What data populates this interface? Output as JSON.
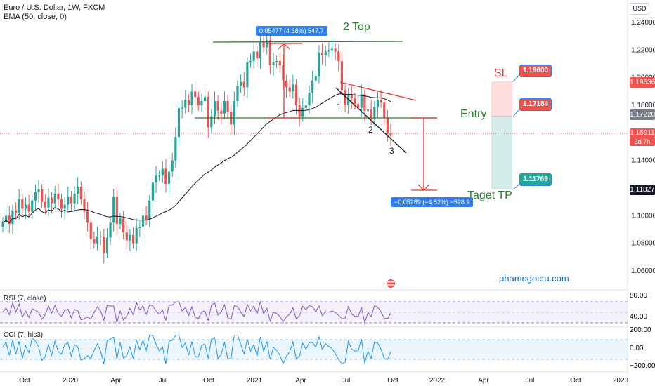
{
  "header": {
    "symbol": "Euro / U.S. Dollar, 1W, FXCM",
    "indicator": "EMA (50, close, 0)"
  },
  "currency_button": "USD",
  "price_tags": {
    "sl_level": "1.19636",
    "entry_level": "1.17220",
    "current": "1.15911",
    "countdown": "3d 7h",
    "tp_level": "1.11827"
  },
  "callouts": {
    "sl": "1.19600",
    "entry": "1.17184",
    "tp": "1.11769"
  },
  "annotations": {
    "double_top": "2 Top",
    "sl": "SL",
    "entry": "Entry",
    "tp": "Taget TP",
    "wave_1": "1",
    "wave_2": "2",
    "wave_3": "3",
    "measure_up": "0.05477 (4.68%) 547.7",
    "measure_down": "−0.05289 (−4.52%) −528.9",
    "watermark": "phamngoctu.com"
  },
  "panes": {
    "rsi_label": "RSI (7, close)",
    "cci_label": "CCI (7, hlc3)",
    "rsi_ticks": [
      "80.00",
      "40.00"
    ],
    "cci_ticks": [
      "200.00",
      "0.00",
      "−200.00"
    ]
  },
  "colors": {
    "up": "#26a69a",
    "down": "#ef5350",
    "ema": "#131722",
    "blue": "#2f80ed",
    "green_text": "#2e7d32",
    "red_text": "#e53935",
    "rsi": "#7e57c2",
    "cci": "#2196f3"
  },
  "chart_data": {
    "type": "candlestick",
    "title": "Euro / U.S. Dollar, 1W, FXCM",
    "ylim": [
      1.05,
      1.25
    ],
    "y_ticks": [
      "1.24000",
      "1.22000",
      "1.20000",
      "1.18000",
      "1.16000",
      "1.14000",
      "1.12000",
      "1.10000",
      "1.08000",
      "1.06000"
    ],
    "x_ticks": [
      "Oct",
      "2020",
      "Apr",
      "Jul",
      "Oct",
      "2021",
      "Apr",
      "Jul",
      "Oct",
      "2022",
      "Apr",
      "Jul",
      "Oct",
      "2023"
    ],
    "close_path": [
      1.095,
      1.1,
      1.094,
      1.104,
      1.102,
      1.112,
      1.105,
      1.108,
      1.103,
      1.111,
      1.117,
      1.119,
      1.11,
      1.106,
      1.113,
      1.109,
      1.116,
      1.112,
      1.105,
      1.108,
      1.114,
      1.109,
      1.116,
      1.121,
      1.112,
      1.103,
      1.095,
      1.083,
      1.08,
      1.085,
      1.085,
      1.073,
      1.084,
      1.095,
      1.114,
      1.094,
      1.098,
      1.088,
      1.082,
      1.086,
      1.08,
      1.091,
      1.092,
      1.1,
      1.097,
      1.111,
      1.124,
      1.129,
      1.129,
      1.134,
      1.123,
      1.132,
      1.14,
      1.157,
      1.178,
      1.178,
      1.184,
      1.18,
      1.19,
      1.186,
      1.18,
      1.183,
      1.186,
      1.164,
      1.172,
      1.183,
      1.176,
      1.174,
      1.183,
      1.175,
      1.166,
      1.183,
      1.194,
      1.197,
      1.193,
      1.211,
      1.212,
      1.219,
      1.214,
      1.226,
      1.222,
      1.227,
      1.209,
      1.211,
      1.212,
      1.209,
      1.198,
      1.193,
      1.19,
      1.195,
      1.18,
      1.172,
      1.178,
      1.18,
      1.189,
      1.198,
      1.201,
      1.218,
      1.216,
      1.219,
      1.22,
      1.221,
      1.219,
      1.212,
      1.191,
      1.18,
      1.187,
      1.185,
      1.181,
      1.178,
      1.188,
      1.176,
      1.177,
      1.171,
      1.179,
      1.184,
      1.182,
      1.171,
      1.16,
      1.158
    ],
    "ema_label": "EMA (50, close, 0)"
  }
}
